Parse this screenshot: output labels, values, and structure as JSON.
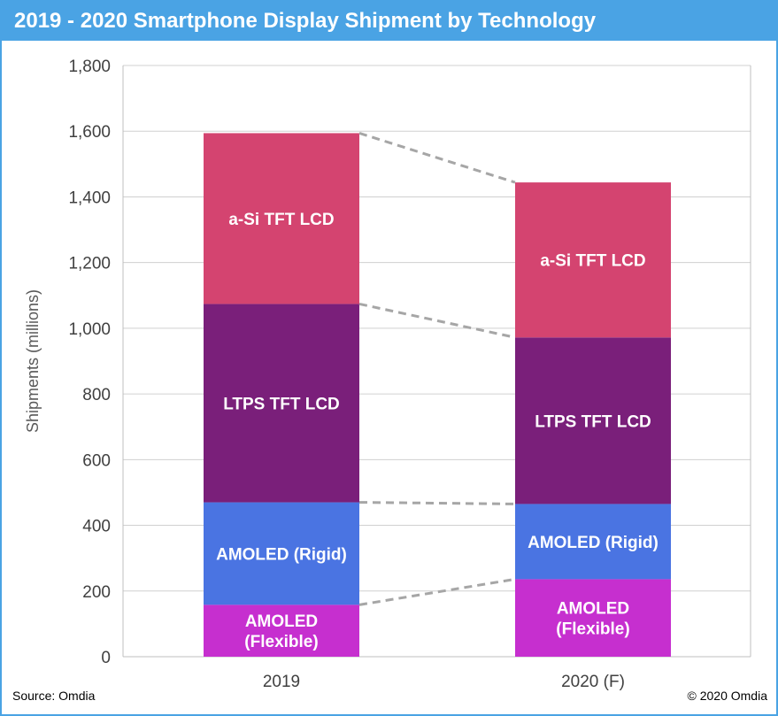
{
  "header": {
    "title": "2019 - 2020 Smartphone Display Shipment by Technology"
  },
  "footer": {
    "source": "Source: Omdia",
    "copyright": "© 2020 Omdia"
  },
  "chart_data": {
    "type": "bar",
    "stacked": true,
    "categories": [
      "2019",
      "2020 (F)"
    ],
    "ylabel": "Shipments (millions)",
    "xlabel": "",
    "ylim": [
      0,
      1800
    ],
    "yticks": [
      0,
      200,
      400,
      600,
      800,
      1000,
      1200,
      1400,
      1600,
      1800
    ],
    "ytick_labels": [
      "0",
      "200",
      "400",
      "600",
      "800",
      "1,000",
      "1,200",
      "1,400",
      "1,600",
      "1,800"
    ],
    "grid": true,
    "connector_lines": "dashed",
    "series": [
      {
        "name": "AMOLED (Flexible)",
        "label_lines": [
          "AMOLED",
          "(Flexible)"
        ],
        "color": "#c62fcf",
        "values": [
          158,
          236
        ]
      },
      {
        "name": "AMOLED (Rigid)",
        "label_lines": [
          "AMOLED (Rigid)"
        ],
        "color": "#4a74e2",
        "values": [
          312,
          229
        ]
      },
      {
        "name": "LTPS TFT LCD",
        "label_lines": [
          "LTPS TFT LCD"
        ],
        "color": "#7a1f7a",
        "values": [
          604,
          507
        ]
      },
      {
        "name": "a-Si TFT LCD",
        "label_lines": [
          "a-Si TFT LCD"
        ],
        "color": "#d44470",
        "values": [
          520,
          472
        ]
      }
    ]
  }
}
